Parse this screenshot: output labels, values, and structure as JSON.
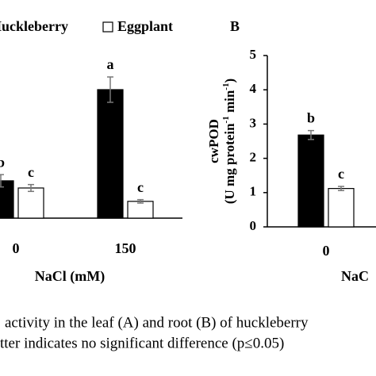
{
  "chart_data": [
    {
      "type": "bar",
      "categories": [
        "0",
        "150"
      ],
      "series": [
        {
          "name": "Huckleberry",
          "color": "#000000",
          "values": [
            1.09,
            3.75
          ],
          "errors": [
            0.18,
            0.37
          ],
          "letters": [
            "b",
            "a"
          ]
        },
        {
          "name": "Eggplant",
          "color": "#ffffff",
          "values": [
            0.88,
            0.49
          ],
          "errors": [
            0.1,
            0.05
          ],
          "letters": [
            "c",
            "c"
          ]
        }
      ],
      "xlabel": "NaCl (mM)",
      "ylim": [
        0,
        5
      ]
    },
    {
      "type": "bar",
      "panel": "B",
      "categories": [
        "0"
      ],
      "series": [
        {
          "name": "Huckleberry",
          "color": "#000000",
          "values": [
            2.68
          ],
          "errors": [
            0.13
          ],
          "letters": [
            "b"
          ]
        },
        {
          "name": "Eggplant",
          "color": "#ffffff",
          "values": [
            1.12
          ],
          "errors": [
            0.06
          ],
          "letters": [
            "c"
          ]
        }
      ],
      "ylabel": [
        "cwPOD",
        [
          "(U mg protein",
          "-1",
          " min",
          "-1",
          ")"
        ]
      ],
      "xlabel": "NaC",
      "ylim": [
        0,
        5
      ],
      "yticks": [
        0,
        1,
        2,
        3,
        4,
        5
      ]
    }
  ],
  "caption": [
    "activity in the leaf (A) and root (B) of huckleberry",
    "tter indicates no significant difference (p≤0.05)"
  ]
}
